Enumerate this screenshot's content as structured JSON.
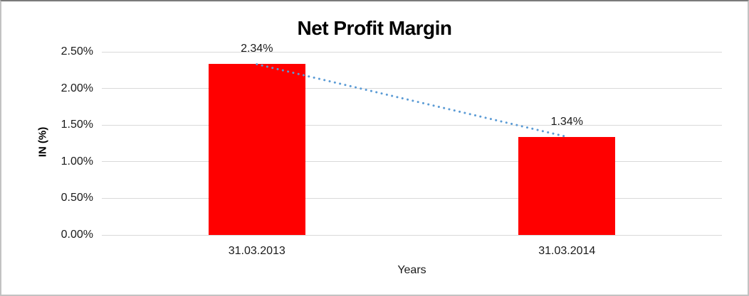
{
  "chart_data": {
    "type": "bar",
    "title": "Net Profit Margin",
    "xlabel": "Years",
    "ylabel": "IN (%)",
    "categories": [
      "31.03.2013",
      "31.03.2014"
    ],
    "values": [
      2.34,
      1.34
    ],
    "data_labels": [
      "2.34%",
      "1.34%"
    ],
    "ylim": [
      0,
      2.5
    ],
    "ytick_step": 0.5,
    "ytick_labels": [
      "0.00%",
      "0.50%",
      "1.00%",
      "1.50%",
      "2.00%",
      "2.50%"
    ],
    "grid": true,
    "legend": "none",
    "bar_color": "#ff0000",
    "gridline_color": "#d9d9d9",
    "trendline": {
      "style": "dotted",
      "color": "#5b9bd5",
      "from_label": "2.34%",
      "to_label": "1.34%"
    }
  }
}
